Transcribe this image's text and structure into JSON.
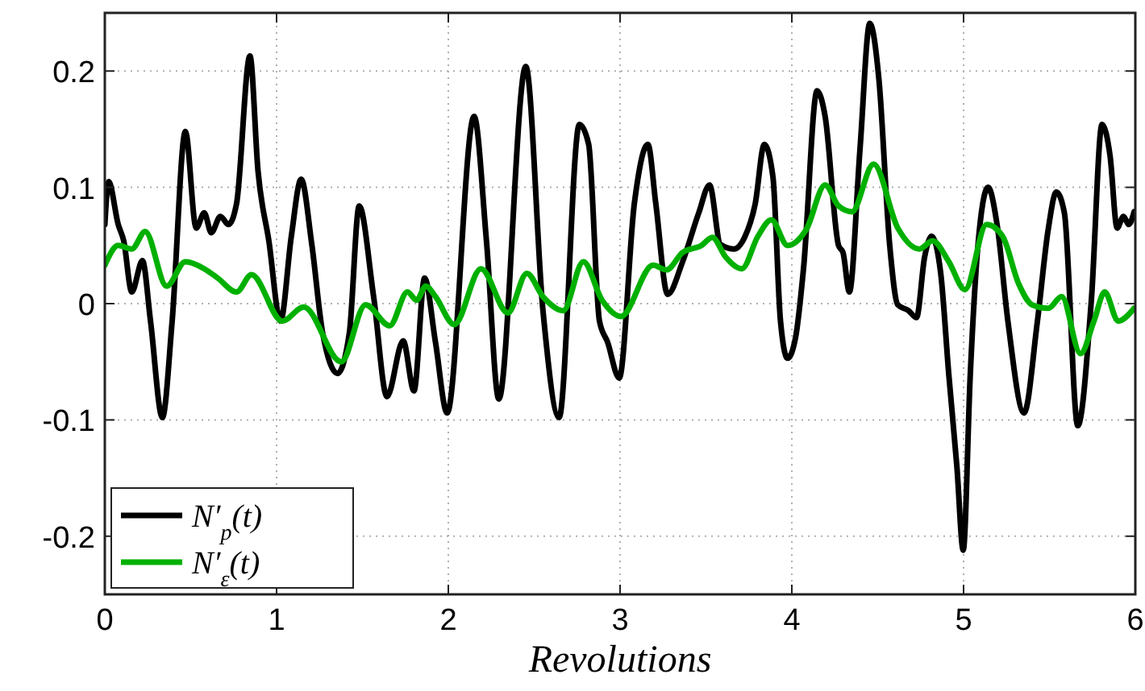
{
  "chart_data": {
    "type": "line",
    "xlabel": "Revolutions",
    "xlim": [
      0,
      6
    ],
    "xticks": [
      0,
      1,
      2,
      3,
      4,
      5,
      6
    ],
    "ylim": [
      -0.25,
      0.25
    ],
    "yticks": [
      -0.2,
      -0.1,
      0,
      0.1,
      0.2
    ],
    "grid": true,
    "legend": "bottom left",
    "line_style": "solid",
    "marker": "none",
    "series": [
      {
        "name": "N′$_{p}$(t)",
        "color": "#000000",
        "x": [
          0,
          0.022,
          0.078,
          0.11,
          0.157,
          0.219,
          0.266,
          0.335,
          0.392,
          0.469,
          0.532,
          0.579,
          0.62,
          0.673,
          0.72,
          0.767,
          0.845,
          0.892,
          0.955,
          1.023,
          1.086,
          1.143,
          1.205,
          1.268,
          1.355,
          1.424,
          1.481,
          1.565,
          1.643,
          1.737,
          1.8,
          1.862,
          1.925,
          1.993,
          2.15,
          2.222,
          2.294,
          2.451,
          2.551,
          2.645,
          2.763,
          2.817,
          2.88,
          2.927,
          2.995,
          3.083,
          3.162,
          3.208,
          3.277,
          3.364,
          3.458,
          3.521,
          3.584,
          3.662,
          3.725,
          3.787,
          3.84,
          3.89,
          3.934,
          3.975,
          4.022,
          4.068,
          4.147,
          4.194,
          4.272,
          4.298,
          4.335,
          4.397,
          4.454,
          4.507,
          4.57,
          4.617,
          4.679,
          4.726,
          4.773,
          4.814,
          4.867,
          4.914,
          4.961,
          4.998,
          5.039,
          5.086,
          5.143,
          5.195,
          5.258,
          5.352,
          5.43,
          5.493,
          5.54,
          5.587,
          5.665,
          5.744,
          5.806,
          5.853,
          5.894,
          5.931,
          5.962,
          5.993
        ],
        "values": [
          0.068,
          0.105,
          0.068,
          0.054,
          0.01,
          0.037,
          -0.015,
          -0.098,
          -0.015,
          0.148,
          0.065,
          0.078,
          0.061,
          0.075,
          0.068,
          0.086,
          0.213,
          0.114,
          0.054,
          -0.015,
          0.058,
          0.107,
          0.051,
          -0.025,
          -0.06,
          -0.025,
          0.084,
          0.006,
          -0.08,
          -0.032,
          -0.075,
          0.022,
          -0.033,
          -0.094,
          0.161,
          0.054,
          -0.082,
          0.204,
          -0.006,
          -0.098,
          0.154,
          0.137,
          -0.015,
          -0.033,
          -0.064,
          0.086,
          0.137,
          0.086,
          0.008,
          0.036,
          0.078,
          0.102,
          0.051,
          0.047,
          0.057,
          0.086,
          0.137,
          0.109,
          -0.015,
          -0.047,
          -0.029,
          0.03,
          0.183,
          0.161,
          0.05,
          0.044,
          0.01,
          0.133,
          0.241,
          0.193,
          0.05,
          -0.001,
          -0.006,
          -0.012,
          0.04,
          0.058,
          0.026,
          -0.061,
          -0.14,
          -0.212,
          -0.061,
          0.054,
          0.1,
          0.068,
          -0.015,
          -0.094,
          -0.015,
          0.064,
          0.096,
          0.078,
          -0.105,
          0.003,
          0.154,
          0.127,
          0.065,
          0.075,
          0.068,
          0.079
        ]
      },
      {
        "name": "N′$_{ε}$(t)",
        "color": "#00b000",
        "x": [
          0,
          0.078,
          0.157,
          0.235,
          0.36,
          0.469,
          0.579,
          0.657,
          0.767,
          0.854,
          1.033,
          1.158,
          1.377,
          1.518,
          1.659,
          1.762,
          1.815,
          1.869,
          1.925,
          2.035,
          2.19,
          2.347,
          2.457,
          2.551,
          2.669,
          2.786,
          2.895,
          3.005,
          3.192,
          3.27,
          3.364,
          3.474,
          3.537,
          3.615,
          3.709,
          3.803,
          3.881,
          3.975,
          4.085,
          4.194,
          4.272,
          4.35,
          4.476,
          4.617,
          4.742,
          4.82,
          4.914,
          5.008,
          5.134,
          5.227,
          5.321,
          5.399,
          5.493,
          5.571,
          5.681,
          5.759,
          5.822,
          5.9,
          5.993
        ],
        "values": [
          0.033,
          0.05,
          0.047,
          0.062,
          0.015,
          0.036,
          0.03,
          0.022,
          0.01,
          0.025,
          -0.015,
          -0.003,
          -0.05,
          -0.001,
          -0.019,
          0.01,
          0.003,
          0.015,
          0.006,
          -0.018,
          0.03,
          -0.008,
          0.026,
          0.006,
          -0.006,
          0.036,
          0.003,
          -0.011,
          0.033,
          0.029,
          0.044,
          0.05,
          0.057,
          0.04,
          0.03,
          0.058,
          0.072,
          0.05,
          0.064,
          0.102,
          0.084,
          0.079,
          0.12,
          0.065,
          0.047,
          0.054,
          0.036,
          0.012,
          0.068,
          0.058,
          0.017,
          -0.001,
          -0.004,
          0.006,
          -0.043,
          -0.015,
          0.01,
          -0.015,
          -0.004
        ]
      }
    ]
  }
}
